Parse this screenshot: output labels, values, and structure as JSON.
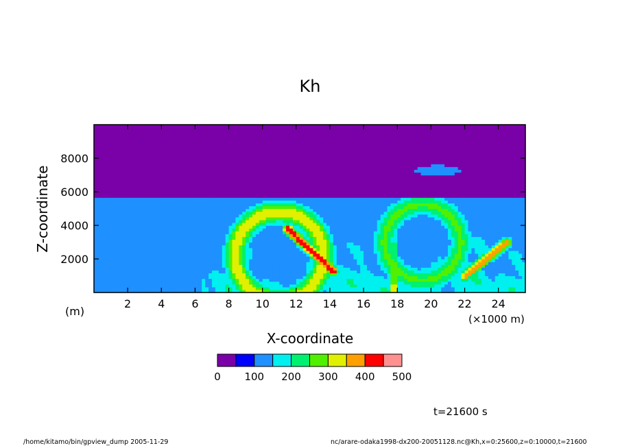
{
  "chart_data": {
    "type": "heatmap",
    "title": "Kh",
    "xlabel": "X-coordinate",
    "ylabel": "Z-coordinate",
    "x_unit": "(×1000 m)",
    "y_unit": "(m)",
    "xlim": [
      0,
      25.6
    ],
    "ylim": [
      0,
      10000
    ],
    "x_ticks": [
      2,
      4,
      6,
      8,
      10,
      12,
      14,
      16,
      18,
      20,
      22,
      24
    ],
    "y_ticks": [
      2000,
      4000,
      6000,
      8000
    ],
    "colorbar": {
      "levels": [
        0,
        50,
        100,
        150,
        200,
        250,
        300,
        350,
        400,
        450,
        500
      ],
      "tick_labels": [
        "0",
        "100",
        "200",
        "300",
        "400",
        "500"
      ],
      "colors": [
        "#7a00a8",
        "#0000ff",
        "#1e90ff",
        "#00f0f0",
        "#00f070",
        "#50f000",
        "#e0f000",
        "#ffa000",
        "#ff0000",
        "#ff9090"
      ]
    },
    "features": [
      {
        "kind": "background",
        "level": 0
      },
      {
        "kind": "lower-band",
        "x": [
          0,
          25.6
        ],
        "z": [
          0,
          4800
        ],
        "level": 2
      },
      {
        "kind": "vortex",
        "center_x": 11,
        "center_z": 2200,
        "radius_km": 3.5,
        "max_level": 8
      },
      {
        "kind": "vortex",
        "center_x": 19.5,
        "center_z": 3000,
        "radius_km": 3.0,
        "max_level": 6
      },
      {
        "kind": "streak",
        "from": [
          11.5,
          3800
        ],
        "to": [
          14.2,
          1300
        ],
        "max_level": 9
      },
      {
        "kind": "streak",
        "from": [
          22.0,
          1000
        ],
        "to": [
          24.5,
          3000
        ],
        "max_level": 8
      },
      {
        "kind": "plume",
        "x": 17.8,
        "z": [
          0,
          4000
        ],
        "max_level": 7
      },
      {
        "kind": "plume",
        "x": 12.8,
        "z": [
          0,
          1500
        ],
        "max_level": 7
      },
      {
        "kind": "patch",
        "x": 20.4,
        "z": 7300,
        "level": 3
      }
    ]
  },
  "time_label": "t=21600 s",
  "footer": {
    "left": "/home/kitamo/bin/gpview_dump  2005-11-29",
    "right": "nc/arare-odaka1998-dx200-20051128.nc@Kh,x=0:25600,z=0:10000,t=21600"
  }
}
